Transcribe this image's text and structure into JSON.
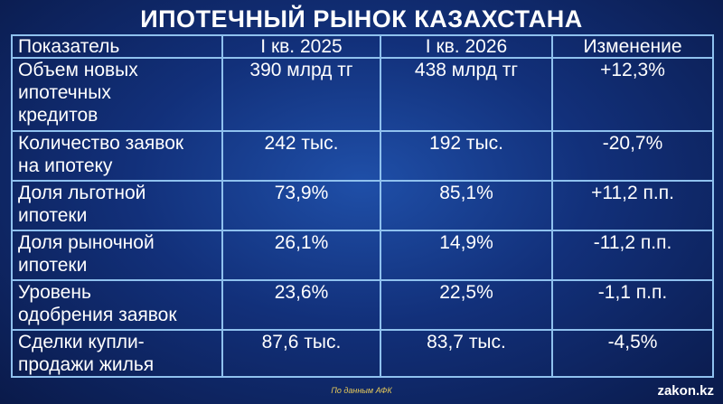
{
  "header": {
    "title": "ИПОТЕЧНЫЙ РЫНОК КАЗАХСТАНА"
  },
  "table": {
    "columns": [
      "Показатель",
      "I кв. 2025",
      "I кв. 2026",
      "Изменение"
    ],
    "rows": [
      [
        "Объем новых\nипотечных\nкредитов",
        "390 млрд тг",
        "438 млрд тг",
        "+12,3%"
      ],
      [
        "Количество заявок\nна ипотеку",
        "242 тыс.",
        "192 тыс.",
        "-20,7%"
      ],
      [
        "Доля льготной\nипотеки",
        "73,9%",
        "85,1%",
        "+11,2 п.п."
      ],
      [
        "Доля рыночной\nипотеки",
        "26,1%",
        "14,9%",
        "-11,2 п.п."
      ],
      [
        "Уровень\nодобрения заявок",
        "23,6%",
        "22,5%",
        "-1,1 п.п."
      ],
      [
        "Сделки купли-\nпродажи жилья",
        "87,6 тыс.",
        "83,7 тыс.",
        "-4,5%"
      ]
    ]
  },
  "footer": {
    "source": "По данным АФК",
    "brand": "zakon.kz"
  }
}
